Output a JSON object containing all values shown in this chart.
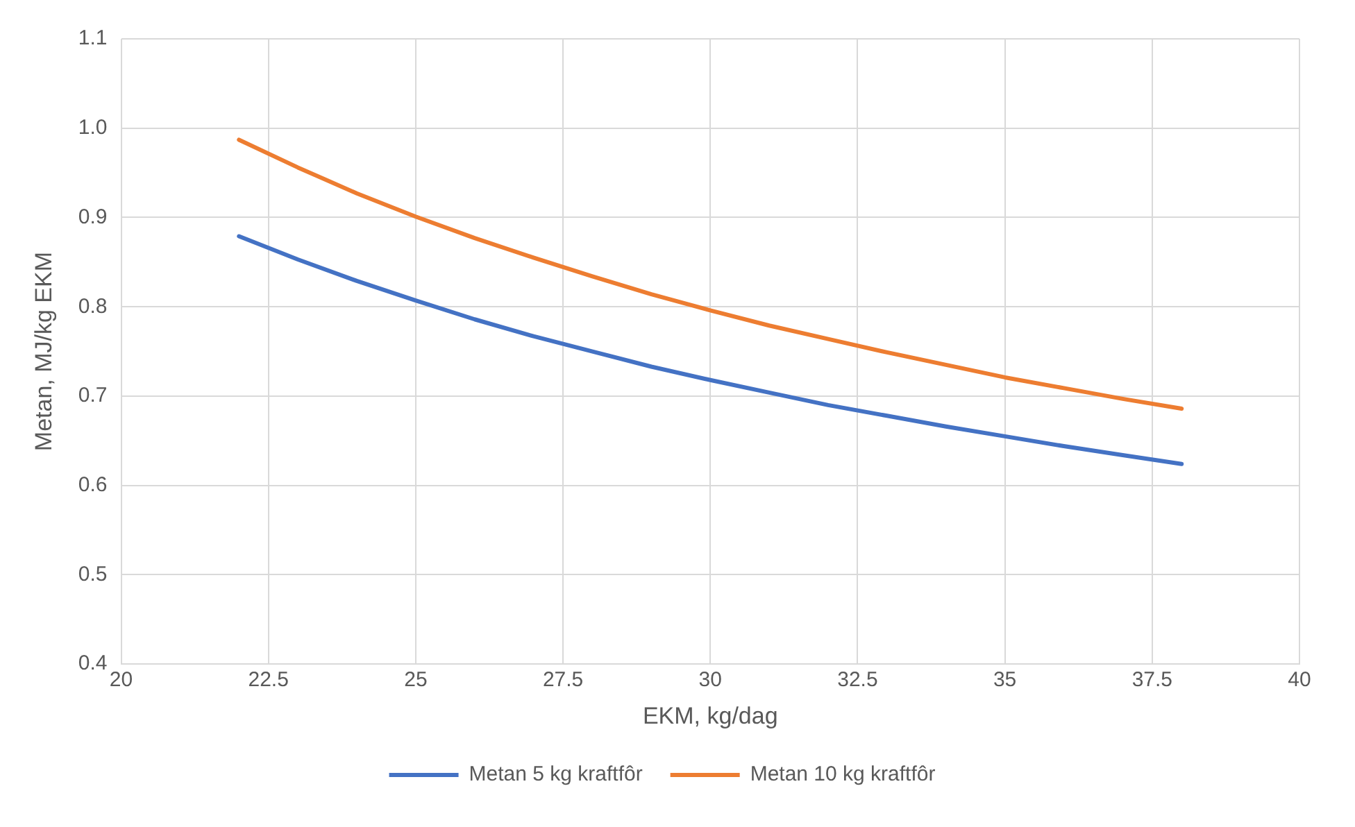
{
  "chart_data": {
    "type": "line",
    "xlabel": "EKM, kg/dag",
    "ylabel": "Metan, MJ/kg EKM",
    "x": [
      22,
      23,
      24,
      25,
      26,
      27,
      28,
      29,
      30,
      31,
      32,
      33,
      34,
      35,
      36,
      37,
      38
    ],
    "series": [
      {
        "name": "Metan 5 kg kraftfôr",
        "color": "#4472c4",
        "values": [
          0.879,
          0.853,
          0.829,
          0.807,
          0.786,
          0.767,
          0.75,
          0.733,
          0.718,
          0.704,
          0.69,
          0.678,
          0.666,
          0.655,
          0.644,
          0.634,
          0.624
        ]
      },
      {
        "name": "Metan 10 kg kraftfôr",
        "color": "#ed7d31",
        "values": [
          0.987,
          0.956,
          0.927,
          0.901,
          0.877,
          0.855,
          0.834,
          0.814,
          0.796,
          0.779,
          0.764,
          0.749,
          0.735,
          0.721,
          0.709,
          0.697,
          0.686
        ]
      }
    ],
    "xlim": [
      20,
      40
    ],
    "xticks": [
      20,
      22.5,
      25,
      27.5,
      30,
      32.5,
      35,
      37.5,
      40
    ],
    "ylim": [
      0.4,
      1.1
    ],
    "yticks": [
      {
        "value": 0.4,
        "label": "0.4"
      },
      {
        "value": 0.5,
        "label": "0.5"
      },
      {
        "value": 0.6,
        "label": "0.6"
      },
      {
        "value": 0.7,
        "label": "0.7"
      },
      {
        "value": 0.8,
        "label": "0.8"
      },
      {
        "value": 0.9,
        "label": "0.9"
      },
      {
        "value": 1.0,
        "label": "1.0"
      },
      {
        "value": 1.1,
        "label": "1.1"
      }
    ],
    "grid": true,
    "legend": "bottom",
    "marker": "none",
    "line_style": "solid"
  }
}
